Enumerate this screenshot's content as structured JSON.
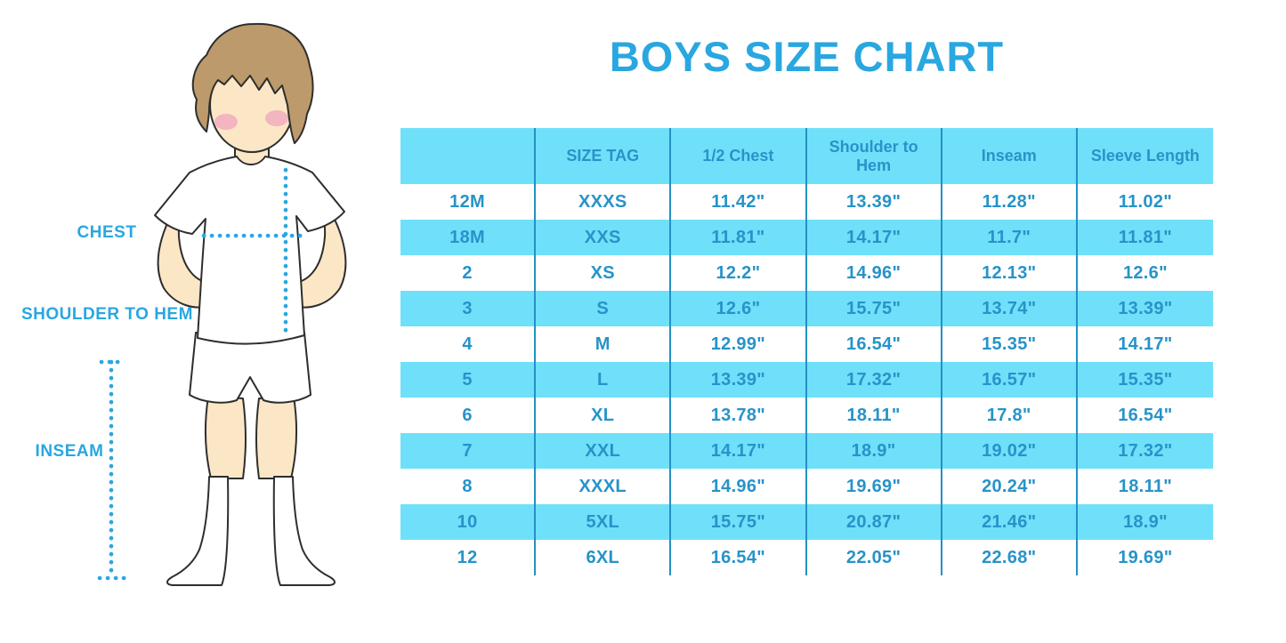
{
  "title": "BOYS SIZE CHART",
  "figure_labels": {
    "chest": "CHEST",
    "shoulder_to_hem": "SHOULDER TO HEM",
    "inseam": "INSEAM"
  },
  "colors": {
    "accent_blue": "#29A7E0",
    "table_text_blue": "#2793C9",
    "stripe_cyan": "#6FE0F9",
    "separator_blue": "#2490C4"
  },
  "chart_data": {
    "type": "table",
    "columns": [
      "",
      "SIZE TAG",
      "1/2 Chest",
      "Shoulder to Hem",
      "Inseam",
      "Sleeve Length"
    ],
    "rows": [
      [
        "12M",
        "XXXS",
        "11.42\"",
        "13.39\"",
        "11.28\"",
        "11.02\""
      ],
      [
        "18M",
        "XXS",
        "11.81\"",
        "14.17\"",
        "11.7\"",
        "11.81\""
      ],
      [
        "2",
        "XS",
        "12.2\"",
        "14.96\"",
        "12.13\"",
        "12.6\""
      ],
      [
        "3",
        "S",
        "12.6\"",
        "15.75\"",
        "13.74\"",
        "13.39\""
      ],
      [
        "4",
        "M",
        "12.99\"",
        "16.54\"",
        "15.35\"",
        "14.17\""
      ],
      [
        "5",
        "L",
        "13.39\"",
        "17.32\"",
        "16.57\"",
        "15.35\""
      ],
      [
        "6",
        "XL",
        "13.78\"",
        "18.11\"",
        "17.8\"",
        "16.54\""
      ],
      [
        "7",
        "XXL",
        "14.17\"",
        "18.9\"",
        "19.02\"",
        "17.32\""
      ],
      [
        "8",
        "XXXL",
        "14.96\"",
        "19.69\"",
        "20.24\"",
        "18.11\""
      ],
      [
        "10",
        "5XL",
        "15.75\"",
        "20.87\"",
        "21.46\"",
        "18.9\""
      ],
      [
        "12",
        "6XL",
        "16.54\"",
        "22.05\"",
        "22.68\"",
        "19.69\""
      ]
    ],
    "striping": "rows alternate white / cyan starting with white; header cyan",
    "grid": "vertical column separators only, no horizontal rules"
  }
}
